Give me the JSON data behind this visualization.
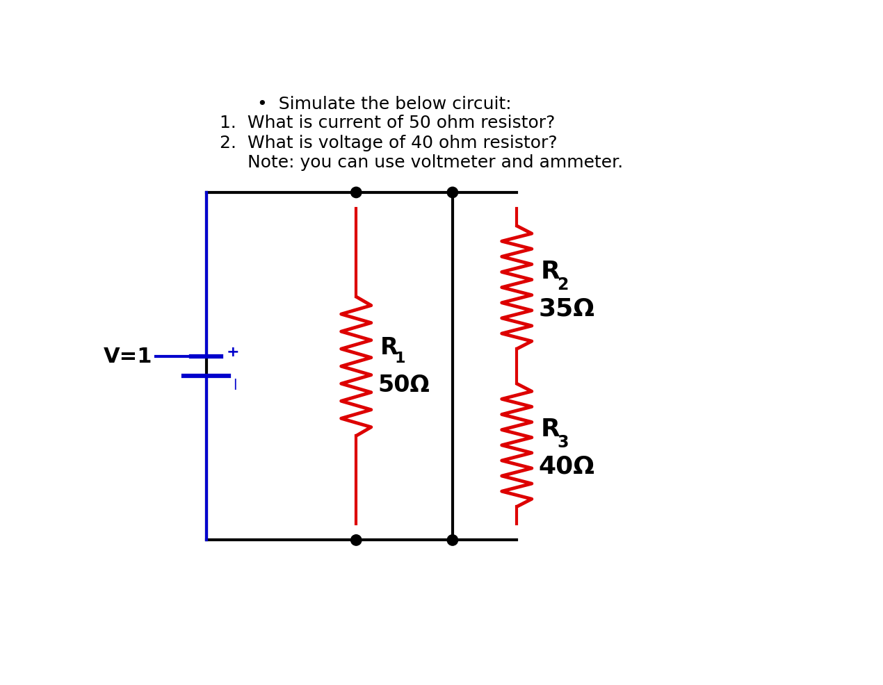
{
  "background_color": "#ffffff",
  "text_color": "#000000",
  "circuit_line_color": "#000000",
  "resistor_color": "#dd0000",
  "battery_color": "#0000cc",
  "title_text": "•  Simulate the below circuit:",
  "question1": "1.  What is current of 50 ohm resistor?",
  "question2": "2.  What is voltage of 40 ohm resistor?",
  "note": "     Note: you can use voltmeter and ammeter.",
  "R1_label": "R",
  "R1_sub": "1",
  "R1_value": "50Ω",
  "R2_label": "R",
  "R2_sub": "2",
  "R2_value": "35Ω",
  "R3_label": "R",
  "R3_sub": "3",
  "R3_value": "40Ω",
  "V_label": "V=1"
}
